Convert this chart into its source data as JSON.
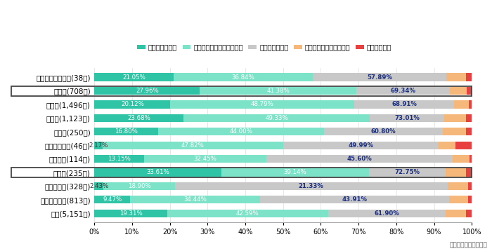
{
  "categories": [
    "農・林・漁・鉱業(38社)",
    "建設業(708社)",
    "製造業(1,496社)",
    "卸売業(1,123社)",
    "小売業(250社)",
    "金融・保険業(46社)",
    "不動産業(114社)",
    "運輸業(235社)",
    "情報通信業(328社)",
    "サービス業他(813社)",
    "全体(5,151社)"
  ],
  "boxed_indices": [
    1,
    7
  ],
  "segment_labels": [
    "大いにマイナス",
    "どちらかというとマイナス",
    "あまり影響なし",
    "どちらかというとプラス",
    "大いにプラス"
  ],
  "colors": [
    "#2ec4a5",
    "#7de3c8",
    "#c8c8c8",
    "#f5b87a",
    "#e84040"
  ],
  "data": [
    [
      21.05,
      36.84,
      35.28,
      5.26,
      1.57
    ],
    [
      27.96,
      41.38,
      24.86,
      4.52,
      1.28
    ],
    [
      20.12,
      48.79,
      26.42,
      3.87,
      0.8
    ],
    [
      23.68,
      49.33,
      19.74,
      5.79,
      1.46
    ],
    [
      16.8,
      44.0,
      31.6,
      6.0,
      1.6
    ],
    [
      2.17,
      47.82,
      41.3,
      4.35,
      4.36
    ],
    [
      13.15,
      32.45,
      49.4,
      4.38,
      0.62
    ],
    [
      33.61,
      39.14,
      20.25,
      5.5,
      1.5
    ],
    [
      2.43,
      18.9,
      72.24,
      5.49,
      0.94
    ],
    [
      9.47,
      34.44,
      50.09,
      5.0,
      1.0
    ],
    [
      19.31,
      42.59,
      31.1,
      5.5,
      1.5
    ]
  ],
  "bar_labels": [
    [
      "21.05%",
      "36.84%",
      "57.89%"
    ],
    [
      "27.96%",
      "41.38%",
      "69.34%"
    ],
    [
      "20.12%",
      "48.79%",
      "68.91%"
    ],
    [
      "23.68%",
      "49.33%",
      "73.01%"
    ],
    [
      "16.80%",
      "44.00%",
      "60.80%"
    ],
    [
      "2.17%",
      "47.82%",
      "49.99%"
    ],
    [
      "13.15%",
      "32.45%",
      "45.60%"
    ],
    [
      "33.61%",
      "39.14%",
      "72.75%"
    ],
    [
      "2.43%",
      "18.90%",
      "21.33%"
    ],
    [
      "9.47%",
      "34.44%",
      "43.91%"
    ],
    [
      "19.31%",
      "42.59%",
      "61.90%"
    ]
  ],
  "label1_in_bar": [
    true,
    true,
    true,
    true,
    true,
    false,
    true,
    true,
    false,
    true,
    true
  ],
  "label2_in_bar": [
    true,
    true,
    true,
    true,
    true,
    true,
    true,
    true,
    true,
    true,
    true
  ],
  "background_color": "#ffffff",
  "source_text": "東京商工リサーチ調べ"
}
